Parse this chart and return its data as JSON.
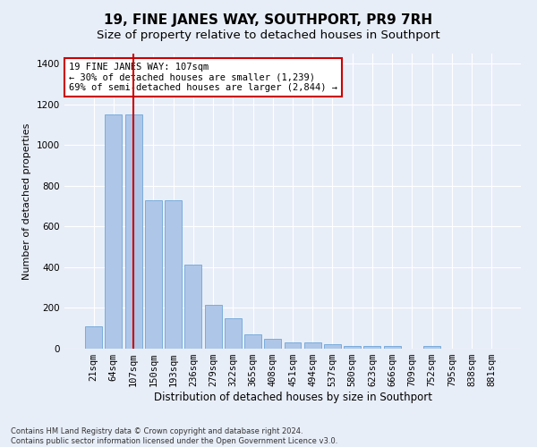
{
  "title": "19, FINE JANES WAY, SOUTHPORT, PR9 7RH",
  "subtitle": "Size of property relative to detached houses in Southport",
  "xlabel": "Distribution of detached houses by size in Southport",
  "ylabel": "Number of detached properties",
  "categories": [
    "21sqm",
    "64sqm",
    "107sqm",
    "150sqm",
    "193sqm",
    "236sqm",
    "279sqm",
    "322sqm",
    "365sqm",
    "408sqm",
    "451sqm",
    "494sqm",
    "537sqm",
    "580sqm",
    "623sqm",
    "666sqm",
    "709sqm",
    "752sqm",
    "795sqm",
    "838sqm",
    "881sqm"
  ],
  "values": [
    110,
    1150,
    1150,
    730,
    730,
    415,
    215,
    150,
    70,
    50,
    30,
    30,
    20,
    15,
    15,
    15,
    0,
    15,
    0,
    0,
    0
  ],
  "bar_color": "#aec6e8",
  "bar_edge_color": "#5b9bd5",
  "highlight_index": 2,
  "highlight_line_color": "#cc0000",
  "ylim": [
    0,
    1450
  ],
  "yticks": [
    0,
    200,
    400,
    600,
    800,
    1000,
    1200,
    1400
  ],
  "annotation_text": "19 FINE JANES WAY: 107sqm\n← 30% of detached houses are smaller (1,239)\n69% of semi-detached houses are larger (2,844) →",
  "annotation_box_color": "#cc0000",
  "footnote": "Contains HM Land Registry data © Crown copyright and database right 2024.\nContains public sector information licensed under the Open Government Licence v3.0.",
  "background_color": "#e8eef8",
  "grid_color": "#ffffff",
  "title_fontsize": 11,
  "subtitle_fontsize": 9.5,
  "ylabel_fontsize": 8,
  "xlabel_fontsize": 8.5,
  "tick_fontsize": 7.5,
  "footnote_fontsize": 6,
  "annotation_fontsize": 7.5
}
